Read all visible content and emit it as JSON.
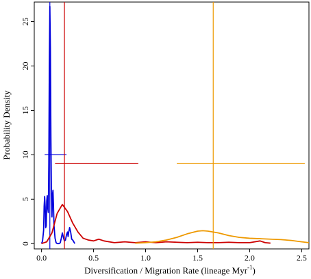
{
  "chart_data": {
    "type": "line",
    "xlabel": {
      "main": "Diversification / Migration Rate (lineage Myr",
      "sup": "-1",
      "close": ")"
    },
    "ylabel": "Probability Density",
    "xlim": [
      -0.07,
      2.57
    ],
    "ylim": [
      -0.6,
      27.2
    ],
    "x_ticks": [
      0.0,
      0.5,
      1.0,
      1.5,
      2.0,
      2.5
    ],
    "x_tick_labels": [
      "0.0",
      "0.5",
      "1.0",
      "1.5",
      "2.0",
      "2.5"
    ],
    "y_ticks": [
      0,
      5,
      10,
      15,
      20,
      25
    ],
    "y_tick_labels": [
      "0",
      "5",
      "10",
      "15",
      "20",
      "25"
    ],
    "grid": false,
    "series": [
      {
        "color": "#0000dd",
        "points": [
          [
            0.0,
            0.0
          ],
          [
            0.01,
            0.3
          ],
          [
            0.02,
            1.5
          ],
          [
            0.025,
            4.2
          ],
          [
            0.03,
            5.3
          ],
          [
            0.035,
            4.1
          ],
          [
            0.04,
            1.8
          ],
          [
            0.045,
            2.0
          ],
          [
            0.05,
            4.8
          ],
          [
            0.055,
            5.4
          ],
          [
            0.06,
            4.0
          ],
          [
            0.065,
            3.5
          ],
          [
            0.07,
            9.0
          ],
          [
            0.075,
            20.0
          ],
          [
            0.08,
            26.7
          ],
          [
            0.085,
            22.0
          ],
          [
            0.09,
            12.0
          ],
          [
            0.095,
            5.5
          ],
          [
            0.1,
            3.0
          ],
          [
            0.105,
            5.5
          ],
          [
            0.11,
            6.0
          ],
          [
            0.115,
            4.2
          ],
          [
            0.12,
            2.0
          ],
          [
            0.13,
            0.6
          ],
          [
            0.14,
            0.1
          ],
          [
            0.15,
            0.0
          ],
          [
            0.16,
            0.0
          ],
          [
            0.17,
            0.0
          ],
          [
            0.18,
            0.1
          ],
          [
            0.19,
            0.6
          ],
          [
            0.2,
            1.2
          ],
          [
            0.21,
            0.7
          ],
          [
            0.22,
            0.3
          ],
          [
            0.23,
            0.4
          ],
          [
            0.24,
            1.0
          ],
          [
            0.25,
            1.3
          ],
          [
            0.255,
            0.8
          ],
          [
            0.26,
            1.2
          ],
          [
            0.27,
            1.8
          ],
          [
            0.28,
            1.3
          ],
          [
            0.29,
            0.5
          ],
          [
            0.3,
            0.4
          ],
          [
            0.31,
            0.2
          ],
          [
            0.32,
            0.0
          ]
        ],
        "marker_x": 0.08,
        "interval": [
          0.03,
          0.24
        ],
        "interval_y": 10
      },
      {
        "color": "#cc0000",
        "points": [
          [
            0.0,
            0.0
          ],
          [
            0.05,
            0.2
          ],
          [
            0.1,
            1.2
          ],
          [
            0.15,
            3.4
          ],
          [
            0.2,
            4.4
          ],
          [
            0.25,
            3.6
          ],
          [
            0.3,
            2.3
          ],
          [
            0.35,
            1.3
          ],
          [
            0.4,
            0.6
          ],
          [
            0.45,
            0.4
          ],
          [
            0.5,
            0.3
          ],
          [
            0.55,
            0.5
          ],
          [
            0.6,
            0.3
          ],
          [
            0.7,
            0.1
          ],
          [
            0.8,
            0.2
          ],
          [
            0.9,
            0.1
          ],
          [
            1.0,
            0.2
          ],
          [
            1.1,
            0.1
          ],
          [
            1.2,
            0.2
          ],
          [
            1.3,
            0.15
          ],
          [
            1.4,
            0.1
          ],
          [
            1.5,
            0.15
          ],
          [
            1.6,
            0.1
          ],
          [
            1.7,
            0.1
          ],
          [
            1.8,
            0.15
          ],
          [
            1.9,
            0.1
          ],
          [
            2.0,
            0.1
          ],
          [
            2.1,
            0.3
          ],
          [
            2.15,
            0.1
          ],
          [
            2.2,
            0.05
          ]
        ],
        "marker_x": 0.22,
        "interval": [
          0.13,
          0.93
        ],
        "interval_y": 9
      },
      {
        "color": "#ee9900",
        "points": [
          [
            0.9,
            0.05
          ],
          [
            1.0,
            0.1
          ],
          [
            1.1,
            0.2
          ],
          [
            1.2,
            0.4
          ],
          [
            1.3,
            0.7
          ],
          [
            1.4,
            1.1
          ],
          [
            1.5,
            1.4
          ],
          [
            1.55,
            1.45
          ],
          [
            1.6,
            1.4
          ],
          [
            1.7,
            1.2
          ],
          [
            1.8,
            0.9
          ],
          [
            1.9,
            0.7
          ],
          [
            2.0,
            0.6
          ],
          [
            2.1,
            0.55
          ],
          [
            2.2,
            0.5
          ],
          [
            2.3,
            0.45
          ],
          [
            2.4,
            0.35
          ],
          [
            2.5,
            0.2
          ],
          [
            2.57,
            0.1
          ]
        ],
        "marker_x": 1.65,
        "interval": [
          1.3,
          2.53
        ],
        "interval_y": 9
      }
    ]
  }
}
